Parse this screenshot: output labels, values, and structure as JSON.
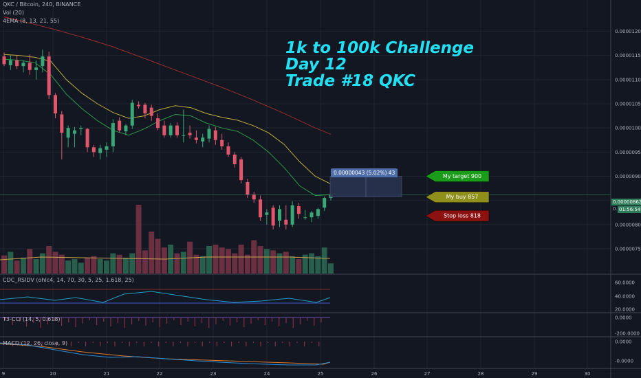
{
  "header": {
    "symbol_line": "QKC / Bitcoin, 240, BINANCE",
    "vol_label": "Vol (20)",
    "ema_label": "4EMA (8, 13, 21, 55)"
  },
  "headline": {
    "line1": "1k to 100k Challenge",
    "line2": "Day 12",
    "line3": "Trade #18  QKC"
  },
  "annotations": {
    "target": "My target 900",
    "buy": "My buy 857",
    "stop": "Stop loss 818",
    "measure": "0.00000043 (5.02%) 43"
  },
  "price_axis": {
    "ticks": [
      "0.00001200",
      "0.00001150",
      "0.00001100",
      "0.00001050",
      "0.00001000",
      "0.00000950",
      "0.00000900",
      "0.00000850",
      "0.00000800",
      "0.00000750"
    ],
    "current_price": "0.00000862",
    "countdown": "01:56:54",
    "partial_label": "0.0"
  },
  "indicators": {
    "rsidv_label": "CDC_RSIDV (ohlc4, 14, 70, 30, 5, 25, 1.618, 25)",
    "rsidv_ticks": [
      "60.0000",
      "40.0000",
      "20.0000"
    ],
    "cci_label": "T3-CCI (14, 5, 0.618)",
    "cci_ticks": [
      "0.0000",
      "-200.0000"
    ],
    "macd_label": "MACD (12, 26, close, 9)",
    "macd_ticks": [
      "0.0000",
      "-0.0000"
    ]
  },
  "time_axis": {
    "labels": [
      "9",
      "20",
      "21",
      "22",
      "23",
      "24",
      "25",
      "26",
      "27",
      "28",
      "29",
      "30"
    ]
  },
  "colors": {
    "bg": "#131722",
    "up": "#3aa876",
    "down": "#e0566a",
    "headline": "#22e0f5",
    "target": "#1a9b1a",
    "buy": "#8f8f1c",
    "stop": "#8c1111"
  },
  "chart_data": {
    "type": "candlestick",
    "title": "QKC / Bitcoin, 240, BINANCE",
    "ylim": [
      7.2e-06,
      1.225e-05
    ],
    "candles": [
      {
        "o": 1.148e-05,
        "h": 1.156e-05,
        "l": 1.128e-05,
        "c": 1.132e-05
      },
      {
        "o": 1.13e-05,
        "h": 1.15e-05,
        "l": 1.12e-05,
        "c": 1.14e-05
      },
      {
        "o": 1.14e-05,
        "h": 1.15e-05,
        "l": 1.122e-05,
        "c": 1.128e-05
      },
      {
        "o": 1.128e-05,
        "h": 1.14e-05,
        "l": 1.115e-05,
        "c": 1.135e-05
      },
      {
        "o": 1.135e-05,
        "h": 1.152e-05,
        "l": 1.11e-05,
        "c": 1.12e-05
      },
      {
        "o": 1.12e-05,
        "h": 1.14e-05,
        "l": 1.1e-05,
        "c": 1.125e-05
      },
      {
        "o": 1.128e-05,
        "h": 1.162e-05,
        "l": 1.115e-05,
        "c": 1.148e-05
      },
      {
        "o": 1.148e-05,
        "h": 1.158e-05,
        "l": 1.06e-05,
        "c": 1.068e-05
      },
      {
        "o": 1.068e-05,
        "h": 1.072e-05,
        "l": 1.02e-05,
        "c": 1.03e-05
      },
      {
        "o": 1.028e-05,
        "h": 1.035e-05,
        "l": 9.35e-06,
        "c": 9.9e-06
      },
      {
        "o": 9.8e-06,
        "h": 1.005e-05,
        "l": 9.6e-06,
        "c": 1e-05
      },
      {
        "o": 9.88e-06,
        "h": 1.002e-05,
        "l": 9.6e-06,
        "c": 9.95e-06
      },
      {
        "o": 9.98e-06,
        "h": 1.005e-05,
        "l": 9.85e-06,
        "c": 1e-05
      },
      {
        "o": 9.98e-06,
        "h": 1e-05,
        "l": 9.5e-06,
        "c": 9.6e-06
      },
      {
        "o": 9.6e-06,
        "h": 9.65e-06,
        "l": 9.4e-06,
        "c": 9.5e-06
      },
      {
        "o": 9.48e-06,
        "h": 9.65e-06,
        "l": 9.35e-06,
        "c": 9.58e-06
      },
      {
        "o": 9.55e-06,
        "h": 9.7e-06,
        "l": 9.4e-06,
        "c": 9.62e-06
      },
      {
        "o": 9.62e-06,
        "h": 1.018e-05,
        "l": 9.5e-06,
        "c": 1.01e-05
      },
      {
        "o": 1.015e-05,
        "h": 1.022e-05,
        "l": 9.9e-06,
        "c": 9.95e-06
      },
      {
        "o": 9.93e-06,
        "h": 1.008e-05,
        "l": 9.85e-06,
        "c": 1.005e-05
      },
      {
        "o": 1.005e-05,
        "h": 1.058e-05,
        "l": 9.98e-06,
        "c": 1.052e-05
      },
      {
        "o": 1.048e-05,
        "h": 1.055e-05,
        "l": 1.04e-05,
        "c": 1.045e-05
      },
      {
        "o": 1.048e-05,
        "h": 1.052e-05,
        "l": 1.02e-05,
        "c": 1.03e-05
      },
      {
        "o": 1.042e-05,
        "h": 1.048e-05,
        "l": 1.015e-05,
        "c": 1.025e-05
      },
      {
        "o": 1.02e-05,
        "h": 1.03e-05,
        "l": 9.95e-06,
        "c": 1e-05
      },
      {
        "o": 1.005e-05,
        "h": 1.015e-05,
        "l": 9.8e-06,
        "c": 9.85e-06
      },
      {
        "o": 9.85e-06,
        "h": 1.01e-05,
        "l": 9.8e-06,
        "c": 1.005e-05
      },
      {
        "o": 1.005e-05,
        "h": 1.012e-05,
        "l": 9.8e-06,
        "c": 9.85e-06
      },
      {
        "o": 9.85e-06,
        "h": 1.038e-05,
        "l": 9.7e-06,
        "c": 9.85e-06
      },
      {
        "o": 9.9e-06,
        "h": 1.005e-05,
        "l": 9.78e-06,
        "c": 9.85e-06
      },
      {
        "o": 9.8e-06,
        "h": 9.95e-06,
        "l": 9.68e-06,
        "c": 9.75e-06
      },
      {
        "o": 9.72e-06,
        "h": 9.88e-06,
        "l": 9.6e-06,
        "c": 9.8e-06
      },
      {
        "o": 9.78e-06,
        "h": 1.005e-05,
        "l": 9.7e-06,
        "c": 9.98e-06
      },
      {
        "o": 9.95e-06,
        "h": 1.002e-05,
        "l": 9.65e-06,
        "c": 9.75e-06
      },
      {
        "o": 9.75e-06,
        "h": 9.88e-06,
        "l": 9.55e-06,
        "c": 9.62e-06
      },
      {
        "o": 9.62e-06,
        "h": 9.7e-06,
        "l": 9.4e-06,
        "c": 9.45e-06
      },
      {
        "o": 9.45e-06,
        "h": 9.5e-06,
        "l": 9.18e-06,
        "c": 9.25e-06
      },
      {
        "o": 9.35e-06,
        "h": 9.4e-06,
        "l": 8.85e-06,
        "c": 8.92e-06
      },
      {
        "o": 8.88e-06,
        "h": 8.95e-06,
        "l": 8.55e-06,
        "c": 8.62e-06
      },
      {
        "o": 8.62e-06,
        "h": 8.68e-06,
        "l": 8.45e-06,
        "c": 8.52e-06
      },
      {
        "o": 8.52e-06,
        "h": 8.6e-06,
        "l": 8.08e-06,
        "c": 8.15e-06
      },
      {
        "o": 8.2e-06,
        "h": 8.32e-06,
        "l": 8e-06,
        "c": 8.25e-06
      },
      {
        "o": 8.35e-06,
        "h": 8.4e-06,
        "l": 7.9e-06,
        "c": 7.98e-06
      },
      {
        "o": 8.08e-06,
        "h": 8.4e-06,
        "l": 7.95e-06,
        "c": 8.32e-06
      },
      {
        "o": 8.1e-06,
        "h": 8.4e-06,
        "l": 7.9e-06,
        "c": 8e-06
      },
      {
        "o": 8e-06,
        "h": 8.48e-06,
        "l": 7.95e-06,
        "c": 8.4e-06
      },
      {
        "o": 8.38e-06,
        "h": 8.45e-06,
        "l": 8.12e-06,
        "c": 8.22e-06
      },
      {
        "o": 8.15e-06,
        "h": 8.3e-06,
        "l": 8.1e-06,
        "c": 8.15e-06
      },
      {
        "o": 8.15e-06,
        "h": 8.28e-06,
        "l": 8.05e-06,
        "c": 8.25e-06
      },
      {
        "o": 8.18e-06,
        "h": 8.35e-06,
        "l": 8.12e-06,
        "c": 8.32e-06
      },
      {
        "o": 8.35e-06,
        "h": 8.58e-06,
        "l": 8.28e-06,
        "c": 8.55e-06
      },
      {
        "o": 8.55e-06,
        "h": 8.65e-06,
        "l": 8.5e-06,
        "c": 8.62e-06
      }
    ],
    "volume": [
      25,
      30,
      18,
      22,
      34,
      20,
      28,
      38,
      30,
      26,
      18,
      20,
      15,
      22,
      24,
      20,
      18,
      28,
      26,
      22,
      28,
      95,
      32,
      58,
      48,
      36,
      40,
      28,
      30,
      44,
      26,
      24,
      38,
      40,
      36,
      34,
      28,
      40,
      26,
      46,
      38,
      34,
      32,
      28,
      30,
      24,
      20,
      26,
      28,
      24,
      36,
      14
    ],
    "ema_slow": [
      1.23e-05,
      1.222e-05,
      1.214e-05,
      1.206e-05,
      1.197e-05,
      1.188e-05,
      1.178e-05,
      1.168e-05,
      1.156e-05,
      1.144e-05,
      1.132e-05,
      1.12e-05,
      1.108e-05,
      1.096e-05,
      1.084e-05,
      1.071e-05,
      1.058e-05,
      1.044e-05,
      1.03e-05,
      1.015e-05,
      1e-05,
      9.87e-06
    ],
    "ema_a": [
      1.152e-05,
      1.15e-05,
      1.146e-05,
      1.138e-05,
      1.1e-05,
      1.072e-05,
      1.05e-05,
      1.032e-05,
      1.02e-05,
      1.025e-05,
      1.038e-05,
      1.046e-05,
      1.042e-05,
      1.03e-05,
      1.022e-05,
      1.016e-05,
      1.005e-05,
      9.9e-06,
      9.66e-06,
      9.3e-06,
      9e-06,
      8.84e-06
    ],
    "ema_b": [
      1.142e-05,
      1.14e-05,
      1.135e-05,
      1.11e-05,
      1.07e-05,
      1.04e-05,
      1.015e-05,
      9.95e-06,
      9.85e-06,
      9.98e-06,
      1.015e-05,
      1.028e-05,
      1.025e-05,
      1.01e-05,
      1e-05,
      9.93e-06,
      9.75e-06,
      9.5e-06,
      9.18e-06,
      8.8e-06,
      8.6e-06,
      8.62e-06
    ],
    "target": 9e-06,
    "buy": 8.57e-06,
    "stop": 8.18e-06
  }
}
